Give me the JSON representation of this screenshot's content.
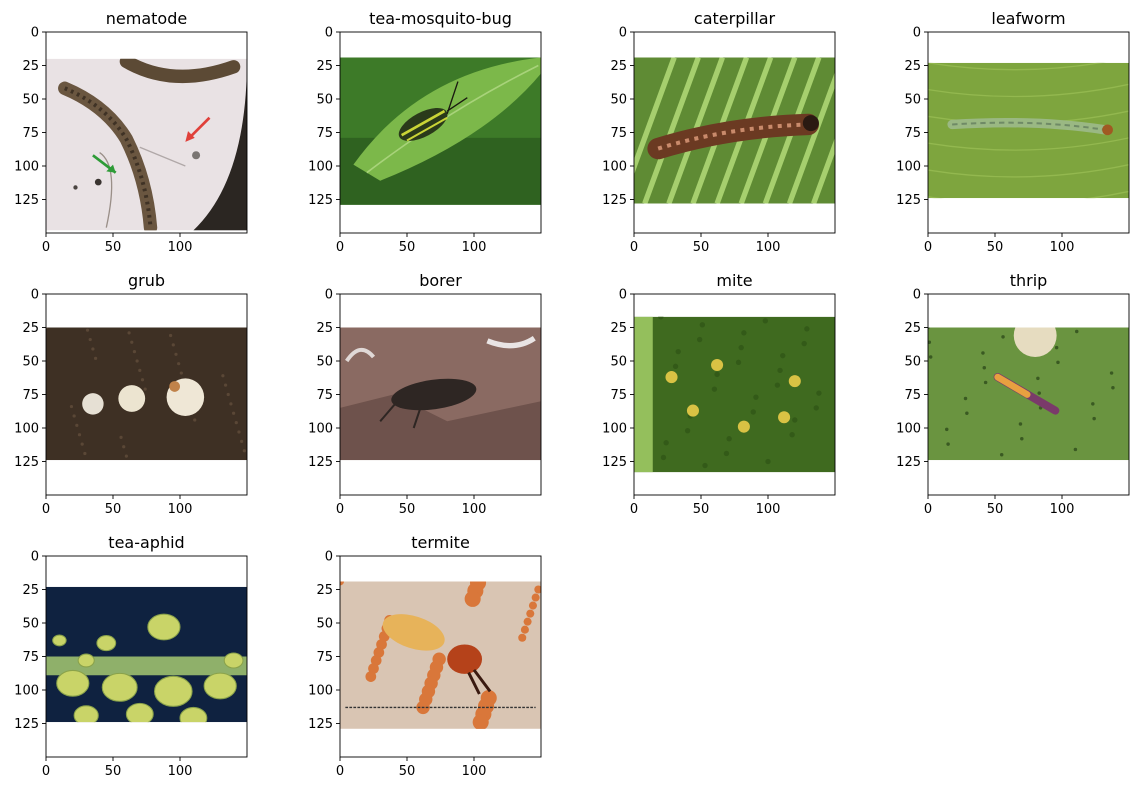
{
  "chart_data": [
    {
      "type": "image",
      "title": "nematode",
      "image_height": 128,
      "top_row": 20,
      "scene": "nematode",
      "xticks": [
        0,
        50,
        100
      ],
      "yticks": [
        0,
        25,
        50,
        75,
        100,
        125
      ],
      "xlim": [
        0,
        150
      ],
      "ylim": [
        150,
        0
      ]
    },
    {
      "type": "image",
      "title": "tea-mosquito-bug",
      "image_height": 110,
      "top_row": 19,
      "scene": "tea-mosquito-bug",
      "xticks": [
        0,
        50,
        100
      ],
      "yticks": [
        0,
        25,
        50,
        75,
        100,
        125
      ],
      "xlim": [
        0,
        150
      ],
      "ylim": [
        150,
        0
      ]
    },
    {
      "type": "image",
      "title": "caterpillar",
      "image_height": 109,
      "top_row": 19,
      "scene": "caterpillar",
      "xticks": [
        0,
        50,
        100
      ],
      "yticks": [
        0,
        25,
        50,
        75,
        100,
        125
      ],
      "xlim": [
        0,
        150
      ],
      "ylim": [
        150,
        0
      ]
    },
    {
      "type": "image",
      "title": "leafworm",
      "image_height": 101,
      "top_row": 23,
      "scene": "leafworm",
      "xticks": [
        0,
        50,
        100
      ],
      "yticks": [
        0,
        25,
        50,
        75,
        100,
        125
      ],
      "xlim": [
        0,
        150
      ],
      "ylim": [
        150,
        0
      ]
    },
    {
      "type": "image",
      "title": "grub",
      "image_height": 99,
      "top_row": 25,
      "scene": "grub",
      "xticks": [
        0,
        50,
        100
      ],
      "yticks": [
        0,
        25,
        50,
        75,
        100,
        125
      ],
      "xlim": [
        0,
        150
      ],
      "ylim": [
        150,
        0
      ]
    },
    {
      "type": "image",
      "title": "borer",
      "image_height": 99,
      "top_row": 25,
      "scene": "borer",
      "xticks": [
        0,
        50,
        100
      ],
      "yticks": [
        0,
        25,
        50,
        75,
        100,
        125
      ],
      "xlim": [
        0,
        150
      ],
      "ylim": [
        150,
        0
      ]
    },
    {
      "type": "image",
      "title": "mite",
      "image_height": 116,
      "top_row": 17,
      "scene": "mite",
      "xticks": [
        0,
        50,
        100
      ],
      "yticks": [
        0,
        25,
        50,
        75,
        100,
        125
      ],
      "xlim": [
        0,
        150
      ],
      "ylim": [
        150,
        0
      ]
    },
    {
      "type": "image",
      "title": "thrip",
      "image_height": 99,
      "top_row": 25,
      "scene": "thrip",
      "xticks": [
        0,
        50,
        100
      ],
      "yticks": [
        0,
        25,
        50,
        75,
        100,
        125
      ],
      "xlim": [
        0,
        150
      ],
      "ylim": [
        150,
        0
      ]
    },
    {
      "type": "image",
      "title": "tea-aphid",
      "image_height": 101,
      "top_row": 23,
      "scene": "tea-aphid",
      "xticks": [
        0,
        50,
        100
      ],
      "yticks": [
        0,
        25,
        50,
        75,
        100,
        125
      ],
      "xlim": [
        0,
        150
      ],
      "ylim": [
        150,
        0
      ]
    },
    {
      "type": "image",
      "title": "termite",
      "image_height": 110,
      "top_row": 19,
      "scene": "termite",
      "xticks": [
        0,
        50,
        100
      ],
      "yticks": [
        0,
        25,
        50,
        75,
        100,
        125
      ],
      "xlim": [
        0,
        150
      ],
      "ylim": [
        150,
        0
      ]
    }
  ]
}
